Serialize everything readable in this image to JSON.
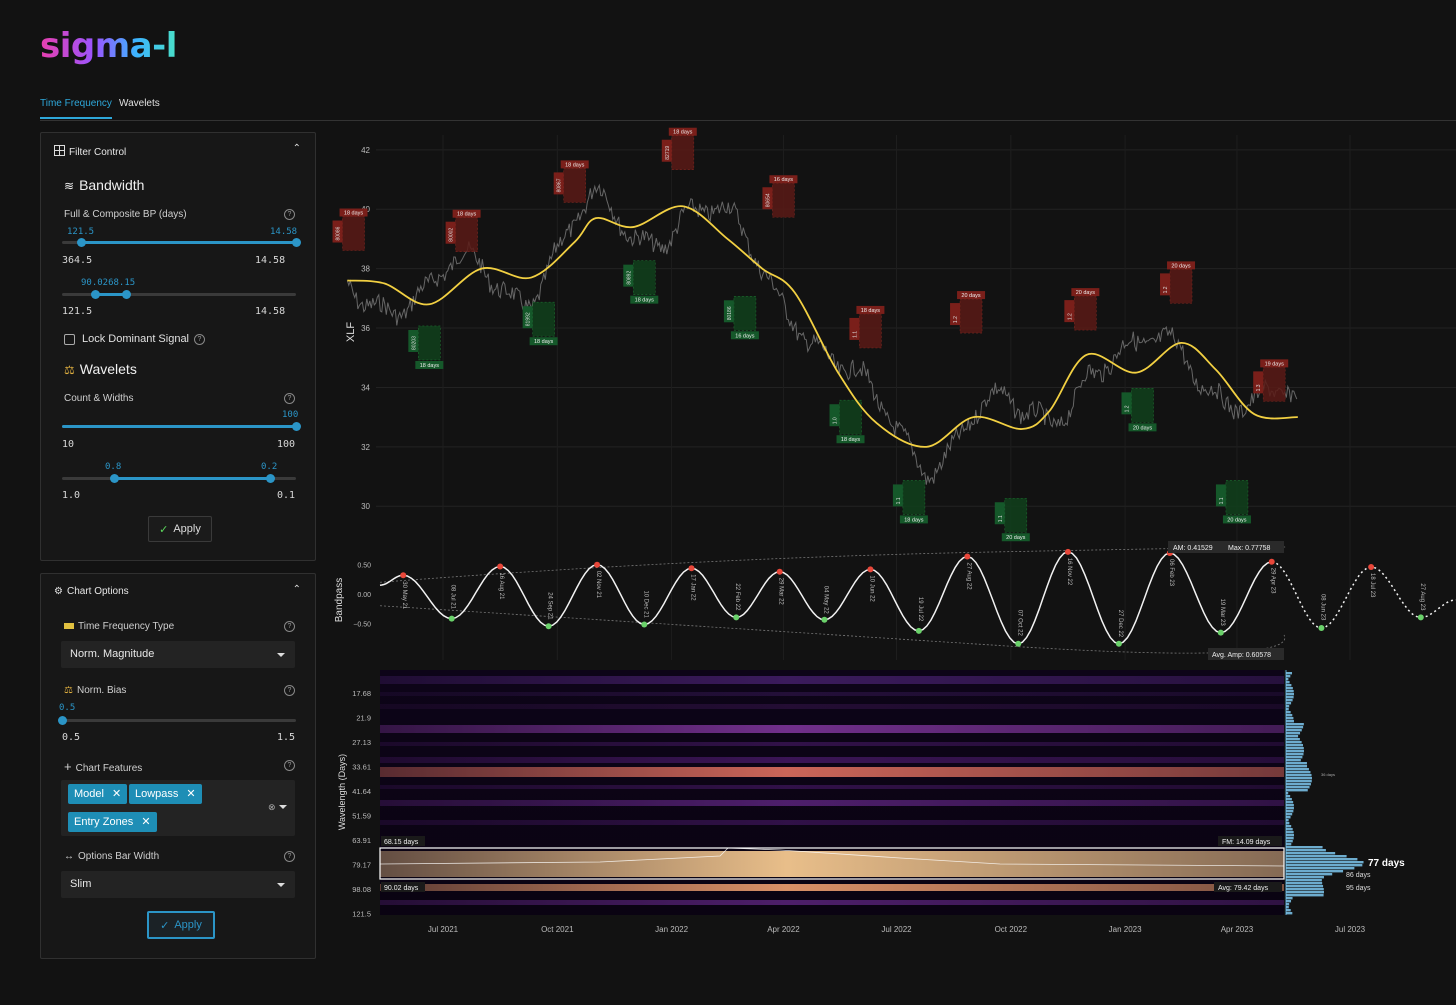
{
  "app": {
    "logo": "sigma-l"
  },
  "tabs": [
    {
      "label": "Time Frequency"
    },
    {
      "label": "Wavelets"
    }
  ],
  "filter_control": {
    "title": "Filter Control",
    "bandwidth_title": "Bandwidth",
    "bp_label": "Full & Composite BP (days)",
    "s1": {
      "v1": "121.5",
      "v2": "14.58",
      "min": "364.5",
      "max": "14.58"
    },
    "s2": {
      "v1": "90.0268.15",
      "min": "121.5",
      "max": "14.58"
    },
    "lock_label": "Lock Dominant Signal",
    "wavelets_title": "Wavelets",
    "count_label": "Count & Widths",
    "s3": {
      "v": "100",
      "min": "10",
      "max": "100"
    },
    "s4": {
      "v1": "0.8",
      "v2": "0.2",
      "min": "1.0",
      "max": "0.1"
    },
    "apply": "Apply"
  },
  "chart_options": {
    "title": "Chart Options",
    "tf_type_label": "Time Frequency Type",
    "tf_type_value": "Norm. Magnitude",
    "bias_label": "Norm. Bias",
    "bias": {
      "v": "0.5",
      "min": "0.5",
      "max": "1.5"
    },
    "features_label": "Chart Features",
    "features": [
      "Model",
      "Lowpass",
      "Entry Zones"
    ],
    "bar_width_label": "Options Bar Width",
    "bar_width_value": "Slim",
    "apply": "Apply"
  },
  "chart_data": [
    {
      "type": "line",
      "ylabel": "XLF",
      "yticks": [
        "42",
        "40",
        "38",
        "36",
        "34",
        "32",
        "30"
      ],
      "y_range": [
        29.2,
        42.5
      ],
      "lowpass_points": [
        [
          "2021-04-15",
          37.6
        ],
        [
          "2021-05-15",
          37.5
        ],
        [
          "2021-06-20",
          36.8
        ],
        [
          "2021-08-01",
          38.0
        ],
        [
          "2021-09-10",
          37.7
        ],
        [
          "2021-10-15",
          38.9
        ],
        [
          "2021-11-01",
          39.7
        ],
        [
          "2021-12-01",
          39.4
        ],
        [
          "2022-01-10",
          40.1
        ],
        [
          "2022-02-15",
          39.0
        ],
        [
          "2022-03-15",
          38.0
        ],
        [
          "2022-04-10",
          37.2
        ],
        [
          "2022-05-15",
          34.5
        ],
        [
          "2022-06-15",
          32.8
        ],
        [
          "2022-07-25",
          32.0
        ],
        [
          "2022-09-01",
          33.0
        ],
        [
          "2022-10-10",
          32.6
        ],
        [
          "2022-11-01",
          33.2
        ],
        [
          "2022-12-01",
          35.1
        ],
        [
          "2023-01-10",
          34.5
        ],
        [
          "2023-02-15",
          35.5
        ],
        [
          "2023-03-15",
          34.6
        ],
        [
          "2023-04-15",
          33.1
        ],
        [
          "2023-05-20",
          33.0
        ]
      ],
      "zones_high": [
        {
          "date": "2021-04-20",
          "days": "18 days",
          "price": "38.88",
          "code": "80086"
        },
        {
          "date": "2021-07-20",
          "days": "18 days",
          "price": "38.84",
          "code": "80002"
        },
        {
          "date": "2021-10-15",
          "days": "18 days",
          "price": "40.50",
          "code": "80867"
        },
        {
          "date": "2022-01-10",
          "days": "18 days",
          "price": "41.60",
          "code": "82719"
        },
        {
          "date": "2022-04-01",
          "days": "16 days",
          "price": "40.00",
          "code": "80654"
        },
        {
          "date": "2022-06-10",
          "days": "18 days",
          "price": "35.60",
          "code": "1.1"
        },
        {
          "date": "2022-08-30",
          "days": "20 days",
          "price": "36.10",
          "code": "1.2"
        },
        {
          "date": "2022-11-30",
          "days": "20 days",
          "price": "36.20",
          "code": "1.2"
        },
        {
          "date": "2023-02-15",
          "days": "20 days",
          "price": "37.10",
          "code": "1.2"
        },
        {
          "date": "2023-05-01",
          "days": "19 days",
          "price": "33.80",
          "code": "1.3"
        }
      ],
      "zones_low": [
        {
          "date": "2021-06-20",
          "days": "18 days",
          "price": "35.80",
          "code": "80203"
        },
        {
          "date": "2021-09-20",
          "days": "18 days",
          "price": "36.60",
          "code": "81992"
        },
        {
          "date": "2021-12-10",
          "days": "18 days",
          "price": "38.00",
          "code": "80892"
        },
        {
          "date": "2022-03-01",
          "days": "16 days",
          "price": "36.80",
          "code": "80186"
        },
        {
          "date": "2022-05-25",
          "days": "18 days",
          "price": "33.30",
          "code": "1.0"
        },
        {
          "date": "2022-07-15",
          "days": "18 days",
          "price": "30.60",
          "code": "1.1"
        },
        {
          "date": "2022-10-05",
          "days": "20 days",
          "price": "30.00",
          "code": "1.1"
        },
        {
          "date": "2023-01-15",
          "days": "20 days",
          "price": "33.70",
          "code": "1.2"
        },
        {
          "date": "2023-04-01",
          "days": "20 days",
          "price": "30.60",
          "code": "1.1"
        }
      ]
    },
    {
      "type": "line",
      "ylabel": "Bandpass",
      "yticks": [
        "0.50",
        "0.00",
        "−0.50"
      ],
      "y_range": [
        -0.7,
        0.7
      ],
      "peaks": [
        {
          "date": "2021-05-30",
          "label": "30 May 21",
          "value": 0.32
        },
        {
          "date": "2021-08-16",
          "label": "16 Aug 21",
          "value": 0.47
        },
        {
          "date": "2021-11-02",
          "label": "02 Nov 21",
          "value": 0.5
        },
        {
          "date": "2022-01-17",
          "label": "17 Jan 22",
          "value": 0.44
        },
        {
          "date": "2022-03-29",
          "label": "29 Mar 22",
          "value": 0.38
        },
        {
          "date": "2022-06-10",
          "label": "10 Jun 22",
          "value": 0.42
        },
        {
          "date": "2022-08-27",
          "label": "27 Aug 22",
          "value": 0.64
        },
        {
          "date": "2022-11-16",
          "label": "16 Nov 22",
          "value": 0.72
        },
        {
          "date": "2023-02-06",
          "label": "06 Feb 23",
          "value": 0.7
        },
        {
          "date": "2023-04-29",
          "label": "29 Apr 23",
          "value": 0.55
        },
        {
          "date": "2023-07-18",
          "label": "18 Jul 23",
          "value": 0.46
        }
      ],
      "troughs": [
        {
          "date": "2021-07-08",
          "label": "08 Jul 21",
          "value": -0.42
        },
        {
          "date": "2021-09-24",
          "label": "24 Sep 21",
          "value": -0.55
        },
        {
          "date": "2021-12-10",
          "label": "10 Dec 21",
          "value": -0.52
        },
        {
          "date": "2022-02-22",
          "label": "22 Feb 22",
          "value": -0.4
        },
        {
          "date": "2022-05-04",
          "label": "04 May 22",
          "value": -0.44
        },
        {
          "date": "2022-07-19",
          "label": "19 Jul 22",
          "value": -0.63
        },
        {
          "date": "2022-10-07",
          "label": "07 Oct 22",
          "value": -0.85
        },
        {
          "date": "2022-12-27",
          "label": "27 Dec 22",
          "value": -0.85
        },
        {
          "date": "2023-03-19",
          "label": "19 Mar 23",
          "value": -0.66
        },
        {
          "date": "2023-06-08",
          "label": "08 Jun 23",
          "value": -0.58
        },
        {
          "date": "2023-08-27",
          "label": "27 Aug 23",
          "value": -0.4
        }
      ],
      "annotations": {
        "am": "AM: 0.41529",
        "max": "Max: 0.77758",
        "avg_amp": "Avg. Amp: 0.60578"
      }
    },
    {
      "type": "heatmap",
      "ylabel": "Wavelength (Days)",
      "yticks": [
        "17.68",
        "21.9",
        "27.13",
        "33.61",
        "41.64",
        "51.59",
        "63.91",
        "79.17",
        "98.08",
        "121.5"
      ],
      "xticks": [
        "Jul 2021",
        "Oct 2021",
        "Jan 2022",
        "Apr 2022",
        "Jul 2022",
        "Oct 2022",
        "Jan 2023",
        "Apr 2023",
        "Jul 2023"
      ],
      "band_labels": {
        "top": "68.15 days",
        "bottom": "90.02 days",
        "fm": "FM: 14.09 days",
        "avg": "Avg: 79.42 days"
      },
      "histogram_labels": {
        "main": "77 days",
        "l2": "86 days",
        "l3": "95 days",
        "small": "36 days"
      }
    }
  ],
  "colors": {
    "accent": "#2b95c7",
    "lowpass": "#f2d042",
    "high_zone": "#5a1a16",
    "low_zone": "#10401c"
  }
}
